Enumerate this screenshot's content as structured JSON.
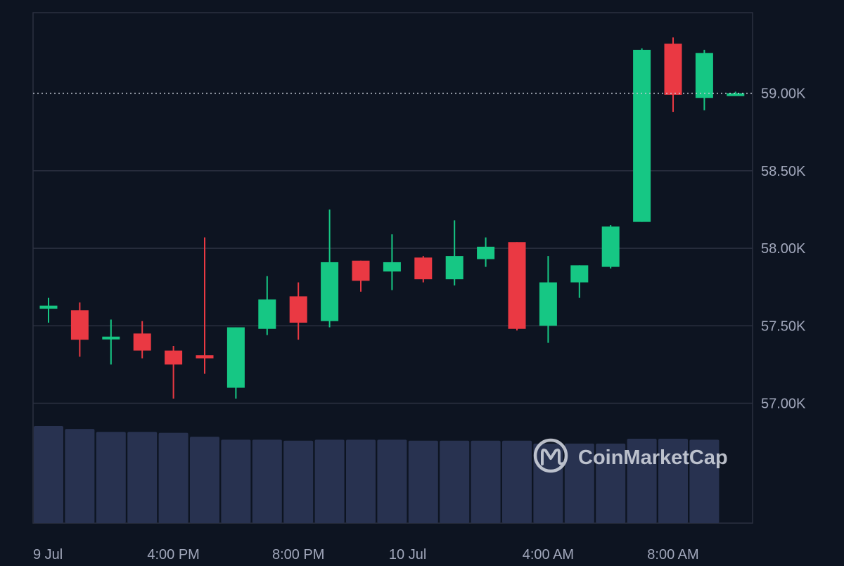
{
  "chart_data": {
    "type": "candlestick",
    "y_axis_labels": [
      "59.00K",
      "58.50K",
      "58.00K",
      "57.50K",
      "57.00K"
    ],
    "y_axis_values": [
      59000,
      58500,
      58000,
      57500,
      57000
    ],
    "ylim": [
      56880,
      59520
    ],
    "current_price": 59000,
    "x_axis_labels": [
      "9 Jul",
      "4:00 PM",
      "8:00 PM",
      "10 Jul",
      "4:00 AM",
      "8:00 AM"
    ],
    "x_axis_label_slots": [
      -0.5,
      4,
      8,
      11.5,
      16,
      20
    ],
    "candles": [
      {
        "open": 57610,
        "high": 57680,
        "low": 57520,
        "close": 57630
      },
      {
        "open": 57600,
        "high": 57650,
        "low": 57300,
        "close": 57410
      },
      {
        "open": 57420,
        "high": 57540,
        "low": 57250,
        "close": 57430
      },
      {
        "open": 57450,
        "high": 57530,
        "low": 57290,
        "close": 57340
      },
      {
        "open": 57340,
        "high": 57370,
        "low": 57030,
        "close": 57250
      },
      {
        "open": 57310,
        "high": 58070,
        "low": 57190,
        "close": 57290
      },
      {
        "open": 57100,
        "high": 57490,
        "low": 57030,
        "close": 57490
      },
      {
        "open": 57480,
        "high": 57820,
        "low": 57440,
        "close": 57670
      },
      {
        "open": 57690,
        "high": 57780,
        "low": 57410,
        "close": 57520
      },
      {
        "open": 57530,
        "high": 58250,
        "low": 57490,
        "close": 57910
      },
      {
        "open": 57920,
        "high": 57920,
        "low": 57720,
        "close": 57790
      },
      {
        "open": 57850,
        "high": 58090,
        "low": 57730,
        "close": 57910
      },
      {
        "open": 57940,
        "high": 57950,
        "low": 57780,
        "close": 57800
      },
      {
        "open": 57800,
        "high": 58180,
        "low": 57760,
        "close": 57950
      },
      {
        "open": 57930,
        "high": 58070,
        "low": 57880,
        "close": 58010
      },
      {
        "open": 58040,
        "high": 58040,
        "low": 57470,
        "close": 57480
      },
      {
        "open": 57500,
        "high": 57950,
        "low": 57390,
        "close": 57780
      },
      {
        "open": 57780,
        "high": 57890,
        "low": 57680,
        "close": 57890
      },
      {
        "open": 57880,
        "high": 58150,
        "low": 57870,
        "close": 58140
      },
      {
        "open": 58170,
        "high": 59290,
        "low": 58170,
        "close": 59280
      },
      {
        "open": 59320,
        "high": 59360,
        "low": 58880,
        "close": 58990
      },
      {
        "open": 58970,
        "high": 59280,
        "low": 58890,
        "close": 59260
      },
      {
        "open": 58990,
        "high": 59010,
        "low": 58990,
        "close": 59000
      }
    ],
    "volume": [
      1.0,
      0.97,
      0.94,
      0.94,
      0.93,
      0.89,
      0.86,
      0.86,
      0.85,
      0.86,
      0.86,
      0.86,
      0.85,
      0.85,
      0.85,
      0.85,
      0.82,
      0.82,
      0.82,
      0.87,
      0.87,
      0.86
    ],
    "grid": true
  },
  "watermark": {
    "text": "CoinMarketCap"
  },
  "colors": {
    "background": "#0d1421",
    "up": "#16c784",
    "down": "#ea3943",
    "grid": "#2b3040",
    "axis_text": "#a1a7bb",
    "volume": "#283250",
    "price_line": "#c7ccd8"
  }
}
